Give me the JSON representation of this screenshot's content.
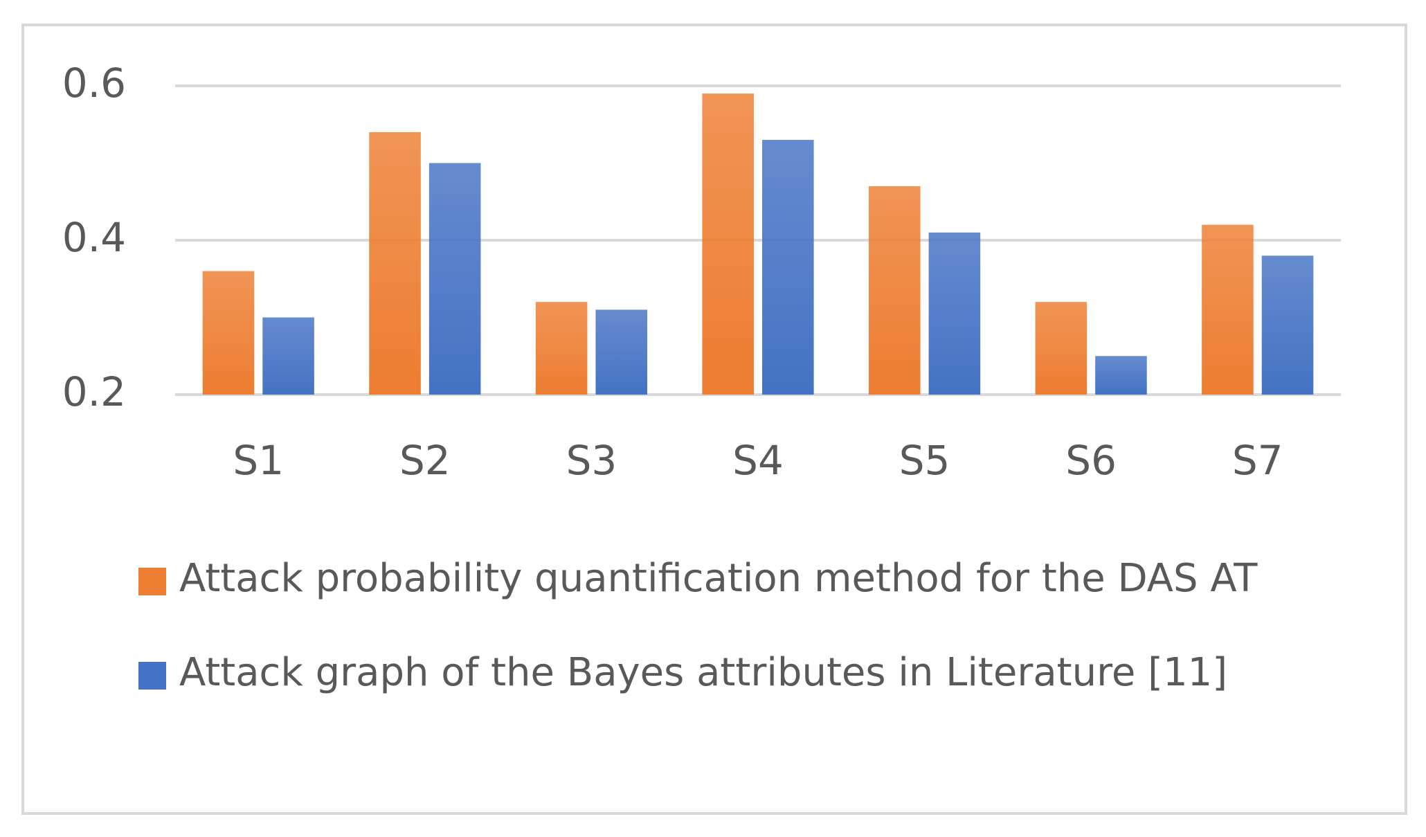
{
  "chart_data": {
    "type": "bar",
    "categories": [
      "S1",
      "S2",
      "S3",
      "S4",
      "S5",
      "S6",
      "S7"
    ],
    "series": [
      {
        "name": "Attack probability quantification method for the DAS AT",
        "color": "#ed7d31",
        "values": [
          0.36,
          0.54,
          0.32,
          0.59,
          0.47,
          0.32,
          0.42
        ]
      },
      {
        "name": "Attack graph of the Bayes attributes in Literature [11]",
        "color": "#4472c4",
        "values": [
          0.3,
          0.5,
          0.31,
          0.53,
          0.41,
          0.25,
          0.38
        ]
      }
    ],
    "ylim": [
      0.2,
      0.6
    ],
    "yticks": [
      0.2,
      0.4,
      0.6
    ],
    "grid": true,
    "legend": "bottom"
  }
}
